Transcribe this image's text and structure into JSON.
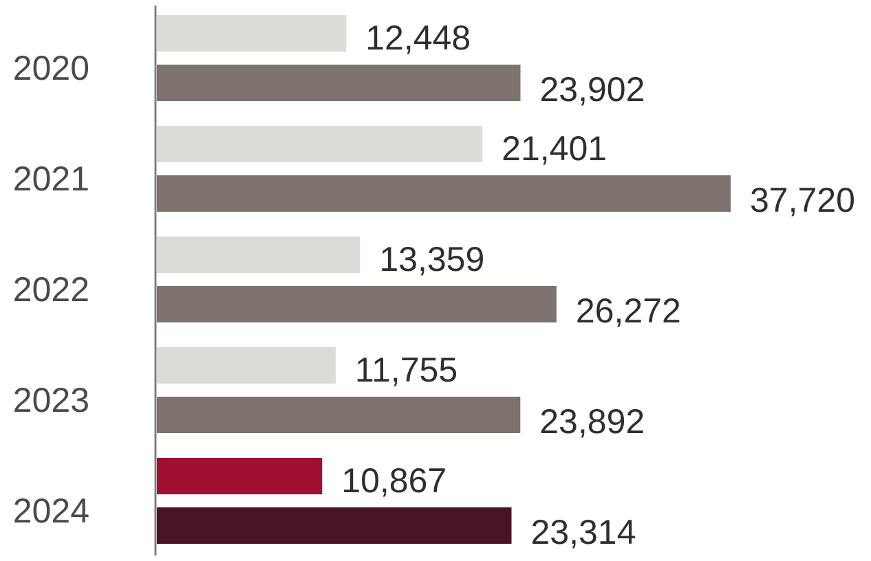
{
  "chart_data": {
    "type": "bar",
    "orientation": "horizontal",
    "categories": [
      "2020",
      "2021",
      "2022",
      "2023",
      "2024"
    ],
    "series": [
      {
        "values": [
          12448,
          21401,
          13359,
          11755,
          10867
        ]
      },
      {
        "values": [
          23902,
          37720,
          26272,
          23892,
          23314
        ]
      }
    ],
    "value_labels": [
      [
        "12,448",
        "21,401",
        "13,359",
        "11,755",
        "10,867"
      ],
      [
        "23,902",
        "37,720",
        "26,272",
        "23,892",
        "23,314"
      ]
    ],
    "xlim": [
      0,
      37720
    ],
    "grid": false,
    "legend": "none",
    "colors": {
      "series_1": "#dddbd5",
      "series_2": "#7d726d",
      "series_1_highlight": "#a01033",
      "series_2_highlight": "#4a1427",
      "axis": "#808080"
    },
    "highlight_category": "2024"
  }
}
